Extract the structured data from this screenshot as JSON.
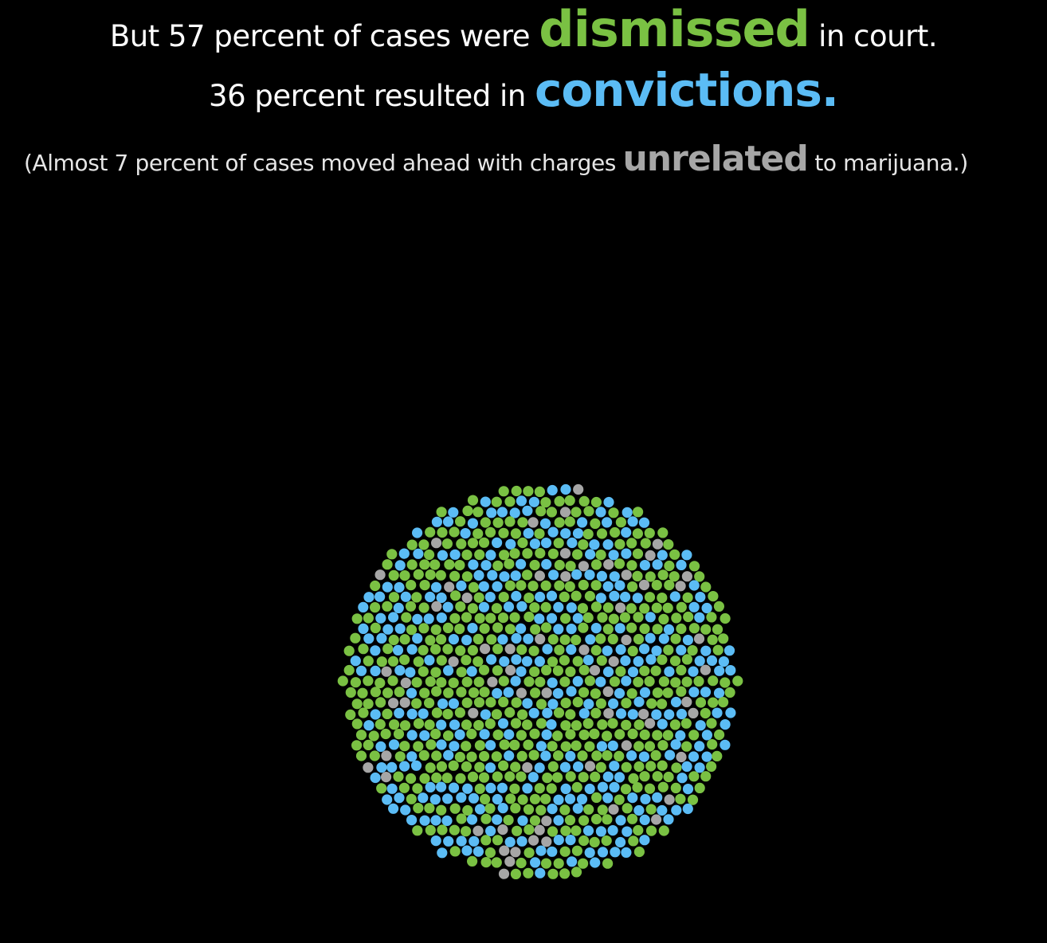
{
  "headline": {
    "line1_pre": "But 57 percent of cases were ",
    "line1_em": "dismissed",
    "line1_post": " in court.",
    "line2_pre": "36 percent resulted in ",
    "line2_em": "convictions.",
    "line3_pre": "(Almost 7 percent of cases moved ahead with charges ",
    "line3_em": "unrelated",
    "line3_post": " to marijuana.)"
  },
  "colors": {
    "background": "#000000",
    "dismissed": "#7ac143",
    "convictions": "#5bbcf5",
    "unrelated": "#a6a6a6"
  },
  "chart_data": {
    "type": "scatter",
    "title": "",
    "categories": [
      "dismissed",
      "convictions",
      "unrelated"
    ],
    "percent": [
      57,
      36,
      7
    ],
    "layout": "packed-circle"
  }
}
